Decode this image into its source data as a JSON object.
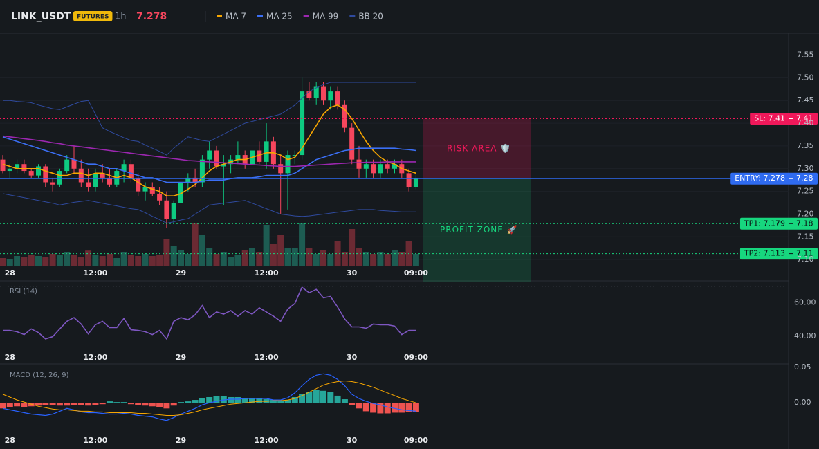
{
  "header": {
    "symbol": "LINK_USDT",
    "badge": "FUTURES",
    "interval": "1h",
    "price": "7.278"
  },
  "chart_data": [
    {
      "type": "candlestick",
      "categories": [
        null,
        "28",
        null,
        null,
        null,
        null,
        null,
        null,
        null,
        null,
        null,
        null,
        null,
        "12:00",
        null,
        null,
        null,
        null,
        null,
        null,
        null,
        null,
        null,
        null,
        null,
        "29",
        null,
        null,
        null,
        null,
        null,
        null,
        null,
        null,
        null,
        null,
        null,
        "12:00",
        null,
        null,
        null,
        null,
        null,
        null,
        null,
        null,
        null,
        null,
        null,
        "30",
        null,
        null,
        null,
        null,
        null,
        null,
        null,
        null,
        "09:00"
      ],
      "open": [
        7.32,
        7.295,
        7.3,
        7.31,
        7.295,
        7.285,
        7.305,
        7.27,
        7.265,
        7.295,
        7.32,
        7.3,
        7.27,
        7.26,
        7.29,
        7.28,
        7.265,
        7.295,
        7.31,
        7.28,
        7.25,
        7.26,
        7.245,
        7.23,
        7.19,
        7.225,
        7.27,
        7.28,
        7.27,
        7.32,
        7.34,
        7.305,
        7.31,
        7.32,
        7.33,
        7.31,
        7.34,
        7.315,
        7.36,
        7.31,
        7.29,
        7.33,
        7.33,
        7.47,
        7.455,
        7.48,
        7.45,
        7.47,
        7.44,
        7.39,
        7.32,
        7.3,
        7.31,
        7.29,
        7.31,
        7.3,
        7.31,
        7.29,
        7.26
      ],
      "high": [
        7.33,
        7.31,
        7.32,
        7.32,
        7.3,
        7.31,
        7.31,
        7.28,
        7.3,
        7.33,
        7.35,
        7.32,
        7.3,
        7.3,
        7.31,
        7.3,
        7.3,
        7.32,
        7.32,
        7.29,
        7.27,
        7.27,
        7.26,
        7.25,
        7.23,
        7.28,
        7.29,
        7.3,
        7.33,
        7.36,
        7.35,
        7.33,
        7.33,
        7.36,
        7.34,
        7.35,
        7.36,
        7.4,
        7.37,
        7.33,
        7.34,
        7.34,
        7.5,
        7.49,
        7.49,
        7.49,
        7.48,
        7.48,
        7.45,
        7.4,
        7.35,
        7.32,
        7.32,
        7.32,
        7.32,
        7.32,
        7.32,
        7.3,
        7.29
      ],
      "low": [
        7.29,
        7.28,
        7.29,
        7.29,
        7.28,
        7.28,
        7.26,
        7.25,
        7.26,
        7.29,
        7.29,
        7.26,
        7.25,
        7.25,
        7.27,
        7.26,
        7.26,
        7.27,
        7.27,
        7.24,
        7.23,
        7.24,
        7.22,
        7.17,
        7.18,
        7.22,
        7.25,
        7.26,
        7.26,
        7.3,
        7.3,
        7.22,
        7.29,
        7.31,
        7.3,
        7.3,
        7.31,
        7.3,
        7.3,
        7.2,
        7.21,
        7.31,
        7.32,
        7.45,
        7.44,
        7.44,
        7.43,
        7.43,
        7.38,
        7.31,
        7.28,
        7.28,
        7.28,
        7.28,
        7.29,
        7.29,
        7.28,
        7.25,
        7.255
      ],
      "close": [
        7.295,
        7.3,
        7.31,
        7.295,
        7.285,
        7.305,
        7.27,
        7.265,
        7.295,
        7.32,
        7.3,
        7.27,
        7.26,
        7.29,
        7.28,
        7.265,
        7.295,
        7.31,
        7.28,
        7.25,
        7.26,
        7.245,
        7.23,
        7.19,
        7.225,
        7.27,
        7.28,
        7.27,
        7.32,
        7.34,
        7.305,
        7.31,
        7.32,
        7.33,
        7.31,
        7.34,
        7.315,
        7.36,
        7.31,
        7.29,
        7.33,
        7.33,
        7.47,
        7.455,
        7.48,
        7.45,
        7.47,
        7.44,
        7.39,
        7.32,
        7.3,
        7.31,
        7.29,
        7.31,
        7.3,
        7.31,
        7.29,
        7.26,
        7.278
      ],
      "up_color": "#0ecb81",
      "down_color": "#f6465d",
      "volume": [
        20,
        18,
        25,
        22,
        28,
        25,
        22,
        30,
        28,
        35,
        28,
        22,
        38,
        28,
        25,
        30,
        20,
        35,
        28,
        25,
        30,
        25,
        28,
        65,
        50,
        40,
        30,
        105,
        75,
        45,
        30,
        35,
        22,
        28,
        40,
        45,
        35,
        100,
        55,
        75,
        45,
        45,
        105,
        45,
        30,
        40,
        30,
        60,
        35,
        90,
        45,
        35,
        30,
        35,
        30,
        40,
        35,
        60,
        30
      ],
      "volume_up_color": "#1d5c52",
      "volume_down_color": "#6b2a33",
      "series": [
        {
          "name": "MA 7",
          "color": "#f7a600",
          "values": [
            7.31,
            7.305,
            7.3,
            7.3,
            7.3,
            7.3,
            7.295,
            7.29,
            7.285,
            7.285,
            7.29,
            7.29,
            7.285,
            7.29,
            7.29,
            7.285,
            7.28,
            7.285,
            7.28,
            7.27,
            7.26,
            7.255,
            7.25,
            7.24,
            7.24,
            7.245,
            7.255,
            7.265,
            7.28,
            7.295,
            7.305,
            7.31,
            7.315,
            7.32,
            7.32,
            7.325,
            7.33,
            7.335,
            7.335,
            7.33,
            7.32,
            7.325,
            7.345,
            7.37,
            7.395,
            7.42,
            7.435,
            7.44,
            7.43,
            7.41,
            7.385,
            7.36,
            7.34,
            7.325,
            7.315,
            7.31,
            7.3,
            7.295,
            7.29
          ]
        },
        {
          "name": "MA 25",
          "color": "#3b6ff5",
          "values": [
            7.37,
            7.365,
            7.36,
            7.355,
            7.35,
            7.345,
            7.34,
            7.335,
            7.33,
            7.325,
            7.32,
            7.315,
            7.31,
            7.31,
            7.305,
            7.3,
            7.3,
            7.295,
            7.29,
            7.285,
            7.28,
            7.28,
            7.275,
            7.27,
            7.27,
            7.27,
            7.27,
            7.27,
            7.272,
            7.275,
            7.275,
            7.275,
            7.278,
            7.28,
            7.28,
            7.28,
            7.282,
            7.285,
            7.285,
            7.285,
            7.285,
            7.29,
            7.3,
            7.31,
            7.32,
            7.325,
            7.33,
            7.335,
            7.34,
            7.342,
            7.345,
            7.345,
            7.345,
            7.345,
            7.345,
            7.345,
            7.343,
            7.342,
            7.34
          ]
        },
        {
          "name": "MA 99",
          "color": "#9c27b0",
          "values": [
            7.372,
            7.37,
            7.368,
            7.366,
            7.364,
            7.362,
            7.36,
            7.357,
            7.355,
            7.352,
            7.35,
            7.348,
            7.346,
            7.344,
            7.342,
            7.34,
            7.338,
            7.336,
            7.334,
            7.332,
            7.33,
            7.328,
            7.326,
            7.324,
            7.322,
            7.32,
            7.318,
            7.317,
            7.316,
            7.315,
            7.314,
            7.313,
            7.312,
            7.311,
            7.31,
            7.309,
            7.308,
            7.307,
            7.306,
            7.305,
            7.305,
            7.305,
            7.306,
            7.307,
            7.308,
            7.309,
            7.31,
            7.311,
            7.312,
            7.313,
            7.313,
            7.314,
            7.314,
            7.314,
            7.315,
            7.315,
            7.315,
            7.315,
            7.315
          ]
        },
        {
          "name": "BB 20",
          "color": "#2f4a9e",
          "values": [
            7.45,
            7.45,
            7.448,
            7.447,
            7.445,
            7.44,
            7.436,
            7.432,
            7.43,
            7.436,
            7.442,
            7.448,
            7.45,
            7.42,
            7.39,
            7.382,
            7.375,
            7.368,
            7.362,
            7.36,
            7.352,
            7.345,
            7.338,
            7.33,
            7.345,
            7.358,
            7.37,
            7.366,
            7.362,
            7.36,
            7.368,
            7.376,
            7.384,
            7.392,
            7.4,
            7.404,
            7.408,
            7.412,
            7.416,
            7.42,
            7.43,
            7.44,
            7.455,
            7.47,
            7.478,
            7.485,
            7.49,
            7.49,
            7.49,
            7.49,
            7.49,
            7.49,
            7.49,
            7.49,
            7.49,
            7.49,
            7.49,
            7.49,
            7.49
          ],
          "lower": [
            7.245,
            7.242,
            7.239,
            7.236,
            7.233,
            7.23,
            7.227,
            7.224,
            7.22,
            7.223,
            7.226,
            7.228,
            7.23,
            7.227,
            7.224,
            7.221,
            7.218,
            7.215,
            7.212,
            7.21,
            7.203,
            7.195,
            7.188,
            7.18,
            7.183,
            7.187,
            7.19,
            7.2,
            7.21,
            7.22,
            7.222,
            7.224,
            7.226,
            7.228,
            7.23,
            7.224,
            7.218,
            7.212,
            7.206,
            7.2,
            7.198,
            7.196,
            7.195,
            7.196,
            7.198,
            7.2,
            7.202,
            7.204,
            7.206,
            7.208,
            7.21,
            7.21,
            7.21,
            7.208,
            7.207,
            7.206,
            7.205,
            7.205,
            7.205
          ]
        }
      ],
      "ylim": [
        7.085,
        7.595
      ],
      "yticks": [
        {
          "value": 7.1,
          "label": "7.10"
        },
        7.15,
        {
          "value": 7.2,
          "label": "7.20"
        },
        7.25,
        {
          "value": 7.3,
          "label": "7.30"
        },
        7.35,
        {
          "value": 7.4,
          "label": "7.40"
        },
        7.45,
        {
          "value": 7.5,
          "label": "7.50"
        },
        7.55
      ],
      "grid": true,
      "levels": [
        {
          "label": "SL: 7.41",
          "value": 7.41,
          "value_label": "7.41",
          "color": "#f0185a",
          "text_color": "#ffffff",
          "dashed": true
        },
        {
          "label": "ENTRY: 7.278",
          "value": 7.278,
          "value_label": "7.28",
          "color": "#2f6bf0",
          "text_color": "#ffffff",
          "dashed": false
        },
        {
          "label": "TP1: 7.179",
          "value": 7.179,
          "value_label": "7.18",
          "color": "#17d67e",
          "text_color": "#0b0e11",
          "dashed": true
        },
        {
          "label": "TP2: 7.113",
          "value": 7.113,
          "value_label": "7.11",
          "color": "#17d67e",
          "text_color": "#0b0e11",
          "dashed": true
        }
      ],
      "zones": [
        {
          "label": "RISK AREA 🛡️",
          "color": "#f0185a"
        },
        {
          "label": "PROFIT ZONE 🚀",
          "color": "#17d67e"
        }
      ]
    },
    {
      "type": "line",
      "title": "RSI (14)",
      "categories": [
        null,
        "28",
        null,
        null,
        null,
        null,
        null,
        null,
        null,
        null,
        null,
        null,
        null,
        "12:00",
        null,
        null,
        null,
        null,
        null,
        null,
        null,
        null,
        null,
        null,
        null,
        "29",
        null,
        null,
        null,
        null,
        null,
        null,
        null,
        null,
        null,
        null,
        null,
        "12:00",
        null,
        null,
        null,
        null,
        null,
        null,
        null,
        null,
        null,
        null,
        null,
        "30",
        null,
        null,
        null,
        null,
        null,
        null,
        null,
        null,
        "09:00"
      ],
      "values": [
        43.4,
        43.4,
        42.6,
        40.9,
        44.3,
        42.1,
        38.3,
        39.6,
        44.3,
        48.9,
        51.1,
        47.2,
        41.3,
        46.8,
        48.9,
        45.1,
        45.1,
        50.6,
        43.8,
        43.4,
        42.6,
        40.9,
        43.4,
        38.3,
        48.9,
        51.1,
        49.8,
        52.8,
        58.3,
        51.1,
        54.5,
        53.2,
        55.3,
        51.9,
        55.3,
        53.2,
        57.0,
        54.5,
        51.9,
        48.9,
        56.2,
        59.6,
        69.4,
        66.0,
        68.1,
        63.0,
        63.8,
        57.4,
        50.2,
        45.5,
        45.5,
        44.7,
        47.2,
        46.8,
        46.8,
        46.0,
        40.9,
        43.4,
        43.4
      ],
      "color": "#7e57c2",
      "ylim": [
        32,
        71.5
      ],
      "yticks": [
        {
          "value": 40,
          "label": "40.00"
        },
        {
          "value": 60,
          "label": "60.00"
        }
      ],
      "reference_lines": [
        70
      ]
    },
    {
      "type": "macd",
      "title": "MACD (12, 26, 9)",
      "categories": [
        null,
        "28",
        null,
        null,
        null,
        null,
        null,
        null,
        null,
        null,
        null,
        null,
        null,
        "12:00",
        null,
        null,
        null,
        null,
        null,
        null,
        null,
        null,
        null,
        null,
        null,
        "29",
        null,
        null,
        null,
        null,
        null,
        null,
        null,
        null,
        null,
        null,
        null,
        "12:00",
        null,
        null,
        null,
        null,
        null,
        null,
        null,
        null,
        null,
        null,
        null,
        "30",
        null,
        null,
        null,
        null,
        null,
        null,
        null,
        null,
        "09:00"
      ],
      "histogram": [
        -0.008,
        -0.006,
        -0.005,
        -0.006,
        -0.005,
        -0.004,
        -0.003,
        -0.003,
        -0.004,
        -0.004,
        -0.003,
        -0.003,
        -0.004,
        -0.003,
        -0.002,
        0.002,
        0.001,
        0.001,
        -0.002,
        -0.003,
        -0.004,
        -0.005,
        -0.006,
        -0.008,
        -0.004,
        0.001,
        0.002,
        0.004,
        0.007,
        0.008,
        0.009,
        0.009,
        0.008,
        0.008,
        0.007,
        0.006,
        0.006,
        0.005,
        0.004,
        0.003,
        0.004,
        0.008,
        0.012,
        0.015,
        0.018,
        0.017,
        0.015,
        0.01,
        0.005,
        -0.003,
        -0.008,
        -0.012,
        -0.014,
        -0.015,
        -0.015,
        -0.014,
        -0.014,
        -0.013,
        -0.013
      ],
      "macd": [
        -0.008,
        -0.01,
        -0.012,
        -0.014,
        -0.016,
        -0.017,
        -0.018,
        -0.016,
        -0.012,
        -0.008,
        -0.01,
        -0.013,
        -0.014,
        -0.014,
        -0.015,
        -0.016,
        -0.016,
        -0.015,
        -0.016,
        -0.018,
        -0.019,
        -0.02,
        -0.023,
        -0.025,
        -0.021,
        -0.016,
        -0.012,
        -0.008,
        -0.003,
        0,
        0.002,
        0.004,
        0.005,
        0.005,
        0.006,
        0.006,
        0.006,
        0.006,
        0.004,
        0.004,
        0.007,
        0.014,
        0.024,
        0.033,
        0.039,
        0.041,
        0.039,
        0.033,
        0.024,
        0.012,
        0.006,
        0.002,
        -0.001,
        -0.003,
        -0.006,
        -0.008,
        -0.01,
        -0.011,
        -0.012
      ],
      "signal": [
        0.012,
        0.008,
        0.004,
        0.001,
        -0.002,
        -0.005,
        -0.007,
        -0.009,
        -0.01,
        -0.01,
        -0.011,
        -0.012,
        -0.012,
        -0.013,
        -0.013,
        -0.014,
        -0.014,
        -0.014,
        -0.014,
        -0.015,
        -0.015,
        -0.016,
        -0.017,
        -0.018,
        -0.018,
        -0.017,
        -0.015,
        -0.013,
        -0.01,
        -0.008,
        -0.006,
        -0.004,
        -0.002,
        -0.001,
        0,
        0.001,
        0.002,
        0.002,
        0.003,
        0.003,
        0.004,
        0.006,
        0.01,
        0.015,
        0.02,
        0.025,
        0.028,
        0.03,
        0.031,
        0.03,
        0.028,
        0.025,
        0.022,
        0.018,
        0.014,
        0.01,
        0.006,
        0.003,
        0
      ],
      "macd_color": "#2962ff",
      "signal_color": "#f7a600",
      "hist_up_color": "#26a69a",
      "hist_down_color": "#ef5350",
      "ylim": [
        -0.039,
        0.053
      ],
      "yticks": [
        {
          "value": 0.05,
          "label": "0.05"
        },
        {
          "value": 0,
          "label": "0.00"
        }
      ]
    }
  ]
}
